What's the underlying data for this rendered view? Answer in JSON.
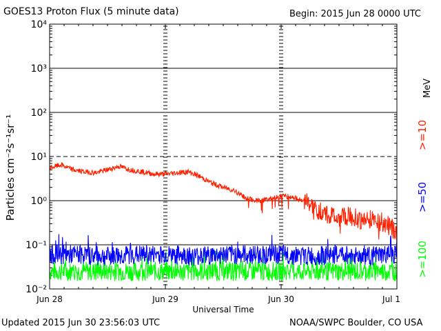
{
  "header": {
    "title": "GOES13 Proton Flux (5 minute data)",
    "begin": "Begin: 2015 Jun 28 0000 UTC"
  },
  "footer": {
    "updated": "Updated 2015 Jun 30 23:56:03 UTC",
    "credit": "NOAA/SWPC Boulder, CO USA"
  },
  "colors": {
    "ge10": "#ff2000",
    "ge50": "#0000ff",
    "ge100": "#00ff00"
  },
  "chart_data": {
    "type": "line",
    "title": "GOES13 Proton Flux (5 minute data)",
    "xlabel": "Universal Time",
    "ylabel": "Particles cm⁻²s⁻¹sr⁻¹",
    "yscale": "log",
    "ylim": [
      0.01,
      10000
    ],
    "xlim": [
      0,
      3
    ],
    "x_unit": "days since 2015 Jun 28 0000 UTC",
    "x_tick_labels": [
      "Jun 28",
      "Jun 29",
      "Jun 30",
      "Jul 1"
    ],
    "y_tick_labels": [
      "10⁻²",
      "10⁻¹",
      "10⁰",
      "10¹",
      "10²",
      "10³",
      "10⁴"
    ],
    "energy_unit": "MeV",
    "threshold_line": 10,
    "grid": true,
    "series": [
      {
        "name": ">=10",
        "color": "#ff2000",
        "x": [
          0,
          0.1,
          0.2,
          0.3,
          0.4,
          0.5,
          0.6,
          0.7,
          0.8,
          0.9,
          1.0,
          1.1,
          1.2,
          1.3,
          1.4,
          1.5,
          1.6,
          1.7,
          1.8,
          1.9,
          2.0,
          2.1,
          2.2,
          2.3,
          2.4,
          2.5,
          2.6,
          2.7,
          2.8,
          2.9,
          3.0
        ],
        "y": [
          5.5,
          6.5,
          5.0,
          4.5,
          4.3,
          5.0,
          6.0,
          5.0,
          4.5,
          4.0,
          4.0,
          4.3,
          4.5,
          3.5,
          2.5,
          2.0,
          1.7,
          1.1,
          1.0,
          1.1,
          1.3,
          1.2,
          1.0,
          0.6,
          0.5,
          0.4,
          0.45,
          0.35,
          0.4,
          0.3,
          0.2
        ]
      },
      {
        "name": ">=50",
        "color": "#0000ff",
        "x": [
          0,
          0.25,
          0.5,
          0.75,
          1.0,
          1.25,
          1.5,
          1.75,
          2.0,
          2.25,
          2.5,
          2.75,
          3.0
        ],
        "y": [
          0.06,
          0.06,
          0.055,
          0.06,
          0.06,
          0.055,
          0.06,
          0.06,
          0.06,
          0.055,
          0.06,
          0.055,
          0.06
        ]
      },
      {
        "name": ">=100",
        "color": "#00ff00",
        "x": [
          0,
          0.25,
          0.5,
          0.75,
          1.0,
          1.25,
          1.5,
          1.75,
          2.0,
          2.25,
          2.5,
          2.75,
          3.0
        ],
        "y": [
          0.025,
          0.025,
          0.025,
          0.025,
          0.025,
          0.025,
          0.025,
          0.025,
          0.025,
          0.025,
          0.025,
          0.025,
          0.025
        ]
      }
    ]
  }
}
